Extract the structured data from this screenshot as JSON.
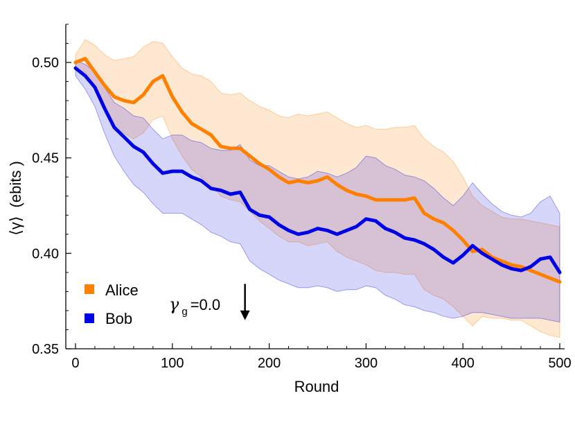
{
  "chart_data": {
    "type": "line",
    "title": "",
    "xlabel": "Round",
    "ylabel_symbol": "⟨γ⟩",
    "ylabel_unit": "(ebits )",
    "xlim": [
      -10,
      505
    ],
    "ylim": [
      0.35,
      0.52
    ],
    "xticks": [
      0,
      100,
      200,
      300,
      400,
      500
    ],
    "yticks": [
      0.35,
      0.4,
      0.45,
      0.5
    ],
    "ytick_labels": [
      "0.35",
      "0.40",
      "0.45",
      "0.50"
    ],
    "grid": false,
    "legend_position": "bottom-left",
    "annotation": {
      "symbol": "γ",
      "subscript": "g",
      "value_text": "=0.0",
      "arrow_x": 175,
      "arrow_y_top": 0.384,
      "arrow_y_bottom": 0.365
    },
    "series": [
      {
        "name": "Alice",
        "color": "#ff8000",
        "x": [
          0,
          10,
          20,
          30,
          40,
          50,
          60,
          70,
          80,
          90,
          100,
          110,
          120,
          130,
          140,
          150,
          160,
          170,
          180,
          190,
          200,
          210,
          220,
          230,
          240,
          250,
          260,
          270,
          280,
          290,
          300,
          310,
          320,
          330,
          340,
          350,
          360,
          370,
          380,
          390,
          400,
          410,
          420,
          430,
          440,
          450,
          460,
          470,
          480,
          490,
          500
        ],
        "values": [
          0.5,
          0.502,
          0.495,
          0.488,
          0.482,
          0.48,
          0.479,
          0.483,
          0.49,
          0.493,
          0.482,
          0.474,
          0.468,
          0.465,
          0.462,
          0.456,
          0.455,
          0.455,
          0.451,
          0.447,
          0.444,
          0.44,
          0.437,
          0.438,
          0.437,
          0.438,
          0.44,
          0.436,
          0.433,
          0.431,
          0.43,
          0.428,
          0.428,
          0.428,
          0.428,
          0.429,
          0.421,
          0.418,
          0.416,
          0.412,
          0.407,
          0.401,
          0.402,
          0.398,
          0.396,
          0.394,
          0.393,
          0.391,
          0.389,
          0.387,
          0.385
        ],
        "lower": [
          0.496,
          0.495,
          0.486,
          0.476,
          0.466,
          0.463,
          0.46,
          0.463,
          0.47,
          0.472,
          0.46,
          0.451,
          0.444,
          0.44,
          0.436,
          0.43,
          0.428,
          0.427,
          0.422,
          0.417,
          0.413,
          0.409,
          0.406,
          0.406,
          0.404,
          0.405,
          0.406,
          0.401,
          0.398,
          0.396,
          0.394,
          0.391,
          0.39,
          0.39,
          0.389,
          0.389,
          0.381,
          0.378,
          0.376,
          0.372,
          0.367,
          0.362,
          0.367,
          0.366,
          0.366,
          0.365,
          0.365,
          0.362,
          0.359,
          0.357,
          0.356
        ],
        "upper": [
          0.504,
          0.512,
          0.509,
          0.504,
          0.501,
          0.502,
          0.503,
          0.508,
          0.511,
          0.51,
          0.503,
          0.497,
          0.494,
          0.493,
          0.49,
          0.484,
          0.483,
          0.484,
          0.48,
          0.477,
          0.475,
          0.472,
          0.471,
          0.473,
          0.472,
          0.473,
          0.474,
          0.471,
          0.468,
          0.466,
          0.467,
          0.465,
          0.465,
          0.466,
          0.466,
          0.467,
          0.46,
          0.456,
          0.453,
          0.448,
          0.44,
          0.43,
          0.425,
          0.422,
          0.419,
          0.418,
          0.418,
          0.417,
          0.416,
          0.415,
          0.414
        ]
      },
      {
        "name": "Bob",
        "color": "#0000e6",
        "x": [
          0,
          10,
          20,
          30,
          40,
          50,
          60,
          70,
          80,
          90,
          100,
          110,
          120,
          130,
          140,
          150,
          160,
          170,
          180,
          190,
          200,
          210,
          220,
          230,
          240,
          250,
          260,
          270,
          280,
          290,
          300,
          310,
          320,
          330,
          340,
          350,
          360,
          370,
          380,
          390,
          400,
          410,
          420,
          430,
          440,
          450,
          460,
          470,
          480,
          490,
          500
        ],
        "values": [
          0.497,
          0.493,
          0.487,
          0.476,
          0.466,
          0.461,
          0.456,
          0.453,
          0.447,
          0.442,
          0.443,
          0.443,
          0.44,
          0.438,
          0.434,
          0.433,
          0.431,
          0.432,
          0.423,
          0.42,
          0.419,
          0.415,
          0.412,
          0.41,
          0.411,
          0.413,
          0.412,
          0.41,
          0.412,
          0.414,
          0.418,
          0.417,
          0.413,
          0.411,
          0.408,
          0.407,
          0.405,
          0.402,
          0.398,
          0.395,
          0.399,
          0.404,
          0.4,
          0.397,
          0.394,
          0.392,
          0.391,
          0.393,
          0.397,
          0.398,
          0.39
        ],
        "lower": [
          0.493,
          0.486,
          0.477,
          0.463,
          0.451,
          0.443,
          0.436,
          0.432,
          0.426,
          0.421,
          0.421,
          0.421,
          0.418,
          0.415,
          0.411,
          0.409,
          0.406,
          0.405,
          0.396,
          0.392,
          0.389,
          0.386,
          0.384,
          0.382,
          0.382,
          0.383,
          0.382,
          0.38,
          0.381,
          0.381,
          0.383,
          0.382,
          0.378,
          0.376,
          0.373,
          0.372,
          0.37,
          0.369,
          0.367,
          0.366,
          0.367,
          0.369,
          0.369,
          0.368,
          0.367,
          0.366,
          0.366,
          0.366,
          0.366,
          0.365,
          0.364
        ],
        "upper": [
          0.501,
          0.499,
          0.495,
          0.487,
          0.479,
          0.476,
          0.472,
          0.471,
          0.465,
          0.46,
          0.462,
          0.462,
          0.459,
          0.458,
          0.455,
          0.454,
          0.454,
          0.457,
          0.449,
          0.446,
          0.446,
          0.443,
          0.44,
          0.439,
          0.44,
          0.443,
          0.442,
          0.44,
          0.442,
          0.445,
          0.451,
          0.45,
          0.446,
          0.444,
          0.441,
          0.44,
          0.438,
          0.434,
          0.429,
          0.425,
          0.43,
          0.437,
          0.431,
          0.426,
          0.422,
          0.42,
          0.419,
          0.421,
          0.427,
          0.43,
          0.421
        ]
      }
    ]
  }
}
